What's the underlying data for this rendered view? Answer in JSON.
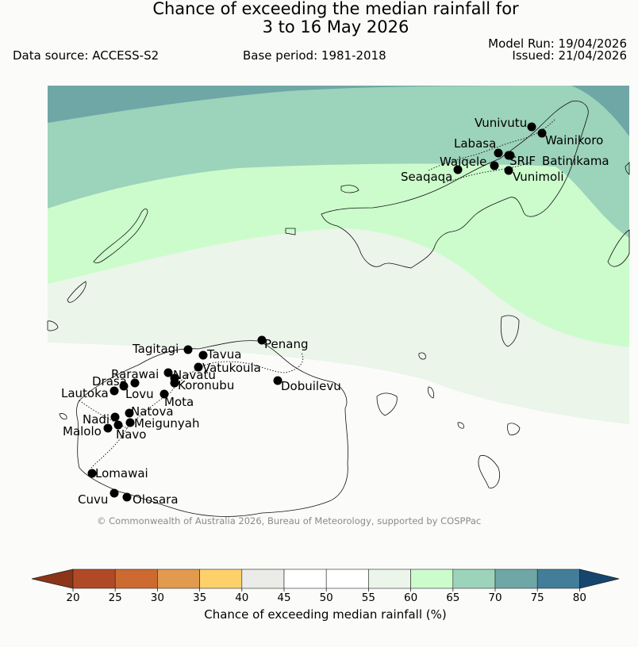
{
  "header": {
    "title_line1": "Chance of exceeding the median rainfall for",
    "title_line2": "3 to 16 May 2026",
    "data_source": "Data source: ACCESS-S2",
    "base_period": "Base period: 1981-2018",
    "model_run": "Model Run: 19/04/2026",
    "issued": "Issued: 21/04/2026"
  },
  "map": {
    "copyright": "© Commonwealth of Australia 2026, Bureau of Meteorology, supported by COSPPac",
    "locations": [
      {
        "name": "Vunivutu"
      },
      {
        "name": "Wainikoro"
      },
      {
        "name": "Labasa"
      },
      {
        "name": "SRIF"
      },
      {
        "name": "Batinikama"
      },
      {
        "name": "Waiqele"
      },
      {
        "name": "Seaqaqa"
      },
      {
        "name": "Vunimoli"
      },
      {
        "name": "Penang"
      },
      {
        "name": "Tagitagi"
      },
      {
        "name": "Tavua"
      },
      {
        "name": "Vatukoula"
      },
      {
        "name": "Rarawai"
      },
      {
        "name": "Navatu"
      },
      {
        "name": "Drasa"
      },
      {
        "name": "Koronubu"
      },
      {
        "name": "Dobuilevu"
      },
      {
        "name": "Lautoka"
      },
      {
        "name": "Lovu"
      },
      {
        "name": "Mota"
      },
      {
        "name": "Natova"
      },
      {
        "name": "Nadi"
      },
      {
        "name": "Meigunyah"
      },
      {
        "name": "Malolo"
      },
      {
        "name": "Navo"
      },
      {
        "name": "Lomawai"
      },
      {
        "name": "Cuvu"
      },
      {
        "name": "Olosara"
      }
    ]
  },
  "colorbar": {
    "label": "Chance of exceeding median rainfall (%)",
    "ticks": [
      "20",
      "25",
      "30",
      "35",
      "40",
      "45",
      "50",
      "55",
      "60",
      "65",
      "70",
      "75",
      "80"
    ],
    "under_color": "#8c3418",
    "over_color": "#16466e",
    "colors": [
      "#b04a26",
      "#cc6a31",
      "#e19a4e",
      "#fdd06a",
      "#ebebe8",
      "#ffffff",
      "#ffffff",
      "#ebf5ea",
      "#ccfccc",
      "#9cd3bb",
      "#6fa7a6",
      "#427d9a"
    ]
  }
}
